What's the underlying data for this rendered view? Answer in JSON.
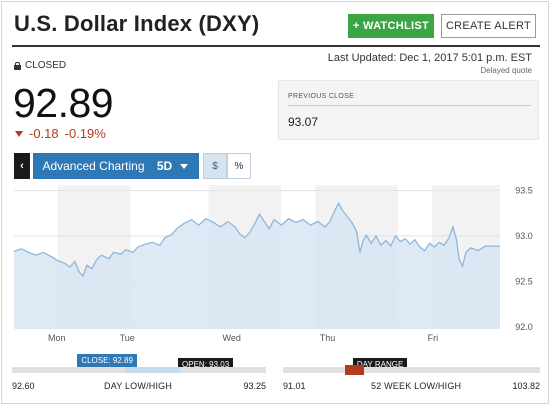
{
  "header": {
    "title": "U.S. Dollar Index (DXY)",
    "watchlist_label": "+ WATCHLIST",
    "alert_label": "CREATE ALERT"
  },
  "status": {
    "market_state": "CLOSED",
    "last_updated": "Last Updated: Dec 1, 2017 5:01 p.m. EST",
    "delayed": "Delayed quote"
  },
  "quote": {
    "price": "92.89",
    "change": "-0.18",
    "change_pct": "-0.19%",
    "change_color": "#b33a1f"
  },
  "previous_close": {
    "label": "PREVIOUS CLOSE",
    "value": "93.07"
  },
  "toolbar": {
    "back_icon": "chevron-left-icon",
    "back_glyph": "‹",
    "advanced_label": "Advanced Charting",
    "range_label": "5D",
    "dollar_label": "$",
    "pct_label": "%"
  },
  "chart_data": {
    "type": "area",
    "x_labels": [
      "Mon",
      "Tue",
      "Wed",
      "Thu",
      "Fri"
    ],
    "y_ticks": [
      92.0,
      92.5,
      93.0,
      93.5
    ],
    "y_tick_labels": [
      "92.0",
      "92.5",
      "93.0",
      "93.5"
    ],
    "ylim": [
      91.98,
      93.56
    ],
    "xlim": [
      0,
      100
    ],
    "line_color": "#8fb6d9",
    "fill_color": "#d7e6f3",
    "points": [
      [
        0,
        92.83
      ],
      [
        1.5,
        92.86
      ],
      [
        3,
        92.82
      ],
      [
        4.5,
        92.79
      ],
      [
        6,
        92.82
      ],
      [
        7.5,
        92.78
      ],
      [
        9,
        92.73
      ],
      [
        10.5,
        92.7
      ],
      [
        11.5,
        92.66
      ],
      [
        12.5,
        92.72
      ],
      [
        13.5,
        92.6
      ],
      [
        14.2,
        92.56
      ],
      [
        15,
        92.68
      ],
      [
        16,
        92.64
      ],
      [
        17,
        92.74
      ],
      [
        18,
        92.79
      ],
      [
        19.5,
        92.75
      ],
      [
        20.5,
        92.82
      ],
      [
        22,
        92.8
      ],
      [
        23,
        92.85
      ],
      [
        24.5,
        92.82
      ],
      [
        25.5,
        92.88
      ],
      [
        27,
        92.91
      ],
      [
        28.5,
        92.93
      ],
      [
        30,
        92.9
      ],
      [
        31,
        92.98
      ],
      [
        32.5,
        93.02
      ],
      [
        33.5,
        93.08
      ],
      [
        35,
        93.14
      ],
      [
        36.5,
        93.18
      ],
      [
        38,
        93.12
      ],
      [
        39.5,
        93.19
      ],
      [
        41,
        93.15
      ],
      [
        42.5,
        93.1
      ],
      [
        44,
        93.16
      ],
      [
        45.5,
        93.1
      ],
      [
        46.5,
        93.02
      ],
      [
        47.5,
        92.98
      ],
      [
        48.5,
        93.04
      ],
      [
        49.5,
        93.13
      ],
      [
        50.5,
        93.24
      ],
      [
        51.5,
        93.16
      ],
      [
        52.5,
        93.08
      ],
      [
        53.5,
        93.18
      ],
      [
        55,
        93.12
      ],
      [
        56.5,
        93.19
      ],
      [
        58,
        93.15
      ],
      [
        59.5,
        93.18
      ],
      [
        61,
        93.12
      ],
      [
        62.5,
        93.16
      ],
      [
        64,
        93.1
      ],
      [
        65,
        93.16
      ],
      [
        66,
        93.28
      ],
      [
        66.8,
        93.36
      ],
      [
        67.6,
        93.28
      ],
      [
        68.5,
        93.22
      ],
      [
        69.5,
        93.15
      ],
      [
        70.5,
        93.05
      ],
      [
        71.2,
        92.82
      ],
      [
        71.8,
        92.94
      ],
      [
        72.5,
        93.01
      ],
      [
        73.5,
        92.92
      ],
      [
        74.5,
        93.0
      ],
      [
        75.5,
        92.9
      ],
      [
        76.5,
        92.95
      ],
      [
        77.5,
        92.89
      ],
      [
        78.5,
        93.0
      ],
      [
        79.5,
        92.94
      ],
      [
        80.5,
        92.97
      ],
      [
        81.5,
        92.91
      ],
      [
        82.5,
        92.96
      ],
      [
        83.5,
        92.88
      ],
      [
        84.5,
        92.84
      ],
      [
        85.5,
        92.92
      ],
      [
        86.5,
        92.88
      ],
      [
        87.5,
        92.93
      ],
      [
        88.5,
        92.9
      ],
      [
        89.5,
        92.98
      ],
      [
        90.3,
        93.1
      ],
      [
        91,
        92.97
      ],
      [
        91.6,
        92.74
      ],
      [
        92.3,
        92.67
      ],
      [
        93,
        92.82
      ],
      [
        94,
        92.87
      ],
      [
        95.5,
        92.84
      ],
      [
        97,
        92.89
      ],
      [
        98.5,
        92.89
      ],
      [
        100,
        92.89
      ]
    ],
    "session_shading": [
      [
        9,
        24
      ],
      [
        40,
        55
      ],
      [
        62,
        79
      ],
      [
        86,
        100
      ]
    ]
  },
  "day_range": {
    "low": "92.60",
    "high": "93.25",
    "label": "DAY LOW/HIGH",
    "close_tag": "CLOSE: 92.89",
    "open_tag": "OPEN: 93.03",
    "close_value": 92.89,
    "open_value": 93.03,
    "low_value": 92.6,
    "high_value": 93.25,
    "fill_color": "#c5dbee"
  },
  "week52_range": {
    "low": "91.01",
    "high": "103.82",
    "label": "52 WEEK LOW/HIGH",
    "tag": "DAY RANGE",
    "marker_color": "#b33a1f",
    "low_value": 91.01,
    "high_value": 103.82,
    "day_low_value": 92.6,
    "day_high_value": 93.25
  }
}
